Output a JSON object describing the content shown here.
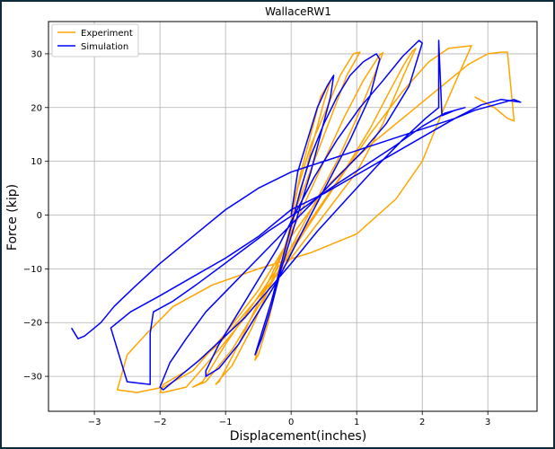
{
  "chart_data": {
    "type": "line",
    "title": "WallaceRW1",
    "xlabel": "Displacement(inches)",
    "ylabel": "Force (kip)",
    "xlim": [
      -3.7,
      3.75
    ],
    "ylim": [
      -36.5,
      36
    ],
    "xticks": [
      -3,
      -2,
      -1,
      0,
      1,
      2,
      3
    ],
    "yticks": [
      -30,
      -20,
      -10,
      0,
      10,
      20,
      30
    ],
    "grid": true,
    "legend_position": "top-left",
    "series": [
      {
        "name": "Experiment",
        "color": "#ffa500",
        "x": [
          0.0,
          0.15,
          0.3,
          0.45,
          0.6,
          0.5,
          0.3,
          0.1,
          -0.05,
          -0.2,
          -0.35,
          -0.5,
          -0.55,
          -0.45,
          -0.25,
          -0.05,
          0.1,
          0.3,
          0.55,
          0.75,
          0.95,
          1.05,
          0.85,
          0.6,
          0.35,
          0.1,
          -0.1,
          -0.35,
          -0.6,
          -0.9,
          -1.05,
          -1.15,
          -1.1,
          -0.8,
          -0.45,
          -0.1,
          0.2,
          0.5,
          0.8,
          1.1,
          1.35,
          1.4,
          1.3,
          1.0,
          0.7,
          0.35,
          0.0,
          -0.4,
          -0.9,
          -1.3,
          -1.5,
          -1.35,
          -1.0,
          -0.55,
          -0.1,
          0.35,
          0.8,
          1.2,
          1.5,
          1.72,
          1.85,
          1.9,
          1.75,
          1.4,
          1.0,
          0.5,
          0.0,
          -0.55,
          -1.1,
          -1.6,
          -1.95,
          -2.0,
          -1.95,
          -1.6,
          -1.1,
          -0.5,
          0.1,
          0.7,
          1.2,
          1.7,
          2.1,
          2.4,
          2.75,
          2.75,
          2.55,
          2.3,
          2.0,
          1.6,
          1.0,
          0.3,
          -0.5,
          -1.2,
          -1.8,
          -2.2,
          -2.5,
          -2.65,
          -2.35,
          -1.95,
          -1.5,
          -1.0,
          -0.5,
          0.0,
          0.6,
          1.2,
          1.8,
          2.3,
          2.7,
          3.0,
          3.2,
          3.3,
          3.4,
          3.3,
          3.1,
          2.8
        ],
        "y": [
          0,
          8,
          15,
          22,
          25,
          21,
          12,
          2,
          -5,
          -12,
          -20,
          -26,
          -27,
          -22,
          -14,
          -4,
          5,
          13,
          20,
          26,
          30,
          30.3,
          26,
          18,
          10,
          2,
          -6,
          -14,
          -21,
          -28,
          -30,
          -31.5,
          -31,
          -24,
          -15,
          -6,
          2,
          10,
          18,
          25,
          29.8,
          30.2,
          27,
          18,
          10,
          2,
          -6,
          -15,
          -25,
          -31,
          -32,
          -31,
          -24,
          -16,
          -8,
          0,
          8,
          16,
          23,
          28,
          30.5,
          31,
          27,
          17,
          8,
          0,
          -8,
          -16,
          -24,
          -29,
          -31.5,
          -33,
          -33,
          -32,
          -25,
          -16,
          -5,
          6,
          15,
          23,
          28.5,
          31,
          31.5,
          31.5,
          26,
          19,
          10,
          3,
          -3.5,
          -7,
          -10,
          -13,
          -17,
          -22,
          -26,
          -32.5,
          -33,
          -32,
          -29,
          -22,
          -14,
          -4,
          6,
          13,
          19,
          24,
          28,
          30,
          30.3,
          30.3,
          17.5,
          18,
          20,
          22
        ]
      },
      {
        "name": "Simulation",
        "color": "#0000ff",
        "x": [
          0.0,
          0.1,
          0.25,
          0.4,
          0.55,
          0.65,
          0.6,
          0.45,
          0.3,
          0.15,
          0.0,
          -0.15,
          -0.3,
          -0.45,
          -0.55,
          -0.45,
          -0.3,
          -0.15,
          0.0,
          0.15,
          0.3,
          0.5,
          0.7,
          0.9,
          1.1,
          1.3,
          1.35,
          1.2,
          0.9,
          0.6,
          0.3,
          0.05,
          -0.2,
          -0.5,
          -0.8,
          -1.1,
          -1.3,
          -1.3,
          -1.1,
          -0.8,
          -0.5,
          -0.2,
          0.05,
          0.35,
          0.7,
          1.05,
          1.4,
          1.7,
          1.95,
          2.0,
          1.8,
          1.45,
          1.1,
          0.7,
          0.3,
          -0.1,
          -0.5,
          -0.9,
          -1.3,
          -1.6,
          -1.85,
          -2.0,
          -1.95,
          -1.7,
          -1.4,
          -1.05,
          -0.7,
          -0.35,
          0.0,
          0.4,
          0.85,
          1.3,
          1.7,
          2.05,
          2.25,
          2.25,
          2.3,
          2.5,
          2.65,
          2.35,
          2.0,
          1.6,
          1.1,
          0.6,
          0.15,
          -0.35,
          -0.9,
          -1.45,
          -1.8,
          -2.1,
          -2.15,
          -2.15,
          -2.5,
          -2.75,
          -2.45,
          -2.0,
          -1.5,
          -1.0,
          -0.5,
          0.0,
          0.5,
          1.0,
          1.5,
          2.0,
          2.5,
          2.8,
          3.1,
          3.4,
          3.5,
          3.2,
          2.9,
          2.5,
          2.0,
          1.5,
          1.0,
          0.5,
          0.0,
          -0.5,
          -1.0,
          -1.5,
          -2.0,
          -2.4,
          -2.7,
          -2.9,
          -3.05,
          -3.15,
          -3.25,
          -3.3,
          -3.35
        ],
        "y": [
          0,
          8,
          14,
          20,
          24,
          26,
          22,
          15,
          8,
          2,
          -4,
          -10,
          -17,
          -23,
          -26,
          -22,
          -16,
          -9,
          -2,
          5,
          11,
          17,
          22,
          26,
          28.5,
          30,
          29,
          22,
          14,
          7,
          0,
          -6,
          -12,
          -18,
          -24,
          -28.5,
          -30,
          -29,
          -24,
          -18,
          -12,
          -6,
          0,
          7,
          14,
          20,
          25,
          29.5,
          32.5,
          32,
          24,
          17,
          12,
          7,
          2,
          -3,
          -8,
          -13,
          -18,
          -23,
          -27.5,
          -32,
          -32.5,
          -30,
          -27,
          -23,
          -19,
          -14,
          -9,
          -3,
          3,
          9,
          14,
          18,
          20,
          32.5,
          18.5,
          19.5,
          20,
          19,
          16.5,
          13,
          9,
          5,
          1,
          -3,
          -8,
          -13,
          -16,
          -18,
          -22,
          -31.5,
          -31,
          -21,
          -18,
          -15,
          -11.5,
          -8,
          -4,
          1,
          4,
          7.5,
          11,
          14.5,
          18,
          19.5,
          20.5,
          21.5,
          21,
          21.5,
          20.5,
          18,
          16,
          14,
          12,
          10,
          8,
          5,
          1,
          -4,
          -9,
          -13.5,
          -17,
          -20,
          -21.5,
          -22.5,
          -23,
          -22,
          -21
        ]
      }
    ]
  }
}
